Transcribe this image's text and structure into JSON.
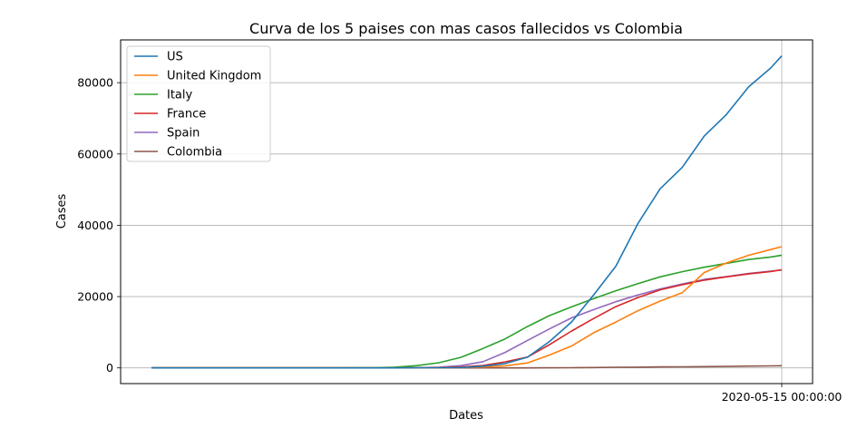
{
  "chart_data": {
    "type": "line",
    "title": "Curva de los 5 paises con mas casos fallecidos vs Colombia",
    "xlabel": "Dates",
    "ylabel": "Cases",
    "x_tick_labels": [
      "2020-05-15 00:00:00"
    ],
    "y_ticks": [
      0,
      20000,
      40000,
      60000,
      80000
    ],
    "y_tick_labels": [
      "0",
      "20000",
      "40000",
      "60000",
      "80000"
    ],
    "ylim": [
      -4400,
      92000
    ],
    "grid": true,
    "legend_position": "upper left",
    "x": [
      "2020-01-22",
      "2020-01-26",
      "2020-01-30",
      "2020-02-03",
      "2020-02-07",
      "2020-02-11",
      "2020-02-15",
      "2020-02-19",
      "2020-02-23",
      "2020-02-27",
      "2020-03-02",
      "2020-03-06",
      "2020-03-10",
      "2020-03-14",
      "2020-03-18",
      "2020-03-22",
      "2020-03-26",
      "2020-03-30",
      "2020-04-03",
      "2020-04-07",
      "2020-04-11",
      "2020-04-15",
      "2020-04-19",
      "2020-04-23",
      "2020-04-27",
      "2020-05-01",
      "2020-05-05",
      "2020-05-09",
      "2020-05-13",
      "2020-05-15"
    ],
    "series": [
      {
        "name": "US",
        "color": "#1f77b4",
        "values": [
          0,
          0,
          0,
          0,
          0,
          0,
          0,
          0,
          0,
          0,
          6,
          12,
          28,
          57,
          108,
          471,
          1209,
          3003,
          7406,
          12895,
          20506,
          28529,
          40553,
          50243,
          56245,
          65068,
          71079,
          78795,
          84119,
          87530
        ]
      },
      {
        "name": "United Kingdom",
        "color": "#ff7f0e",
        "values": [
          0,
          0,
          0,
          0,
          0,
          0,
          0,
          0,
          0,
          0,
          0,
          1,
          6,
          21,
          104,
          282,
          578,
          1408,
          3605,
          6159,
          9875,
          12868,
          16060,
          18738,
          21092,
          26771,
          29427,
          31587,
          33186,
          33998
        ]
      },
      {
        "name": "Italy",
        "color": "#2ca02c",
        "values": [
          0,
          0,
          0,
          0,
          0,
          0,
          0,
          0,
          2,
          17,
          52,
          197,
          631,
          1441,
          2978,
          5476,
          8165,
          11591,
          14681,
          17127,
          19468,
          21645,
          23660,
          25549,
          26977,
          28236,
          29315,
          30395,
          31106,
          31610
        ]
      },
      {
        "name": "France",
        "color": "#d62728",
        "values": [
          0,
          0,
          0,
          0,
          0,
          1,
          1,
          1,
          1,
          2,
          3,
          9,
          33,
          91,
          264,
          674,
          1698,
          3024,
          6507,
          10343,
          13851,
          17188,
          19744,
          21889,
          23327,
          24628,
          25538,
          26346,
          27032,
          27532
        ]
      },
      {
        "name": "Spain",
        "color": "#9467bd",
        "values": [
          0,
          0,
          0,
          0,
          0,
          0,
          0,
          0,
          0,
          0,
          0,
          5,
          36,
          196,
          638,
          1756,
          4365,
          7716,
          10935,
          14045,
          16353,
          18579,
          20453,
          22157,
          23521,
          24824,
          25613,
          26478,
          27104,
          27459
        ]
      },
      {
        "name": "Colombia",
        "color": "#8c564b",
        "values": [
          0,
          0,
          0,
          0,
          0,
          0,
          0,
          0,
          0,
          0,
          0,
          0,
          0,
          0,
          0,
          1,
          4,
          10,
          35,
          54,
          100,
          189,
          215,
          269,
          293,
          358,
          420,
          510,
          562,
          613
        ]
      }
    ]
  }
}
